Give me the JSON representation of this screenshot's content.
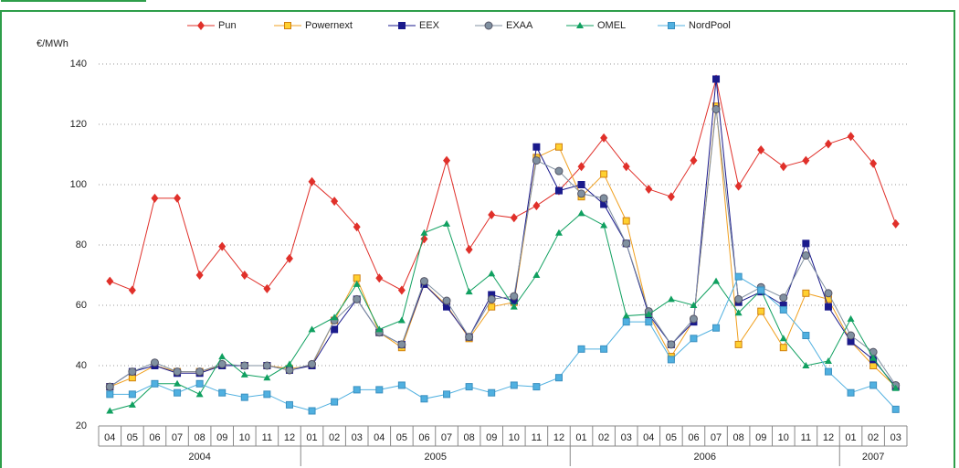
{
  "chart_data": {
    "type": "line",
    "y_label": "€/MWh",
    "categories": [
      "04",
      "05",
      "06",
      "07",
      "08",
      "09",
      "10",
      "11",
      "12",
      "01",
      "02",
      "03",
      "04",
      "05",
      "06",
      "07",
      "08",
      "09",
      "10",
      "11",
      "12",
      "01",
      "02",
      "03",
      "04",
      "05",
      "06",
      "07",
      "08",
      "09",
      "10",
      "11",
      "12",
      "01",
      "02",
      "03"
    ],
    "years": [
      "2004",
      "2005",
      "2006",
      "2007"
    ],
    "ylim": [
      20,
      140
    ],
    "yticks": [
      20,
      40,
      60,
      80,
      100,
      120,
      140
    ],
    "grid": true,
    "legend": "top",
    "series": [
      {
        "name": "Pun",
        "color": "#e0302a",
        "marker": "diamond",
        "values": [
          68,
          65,
          95.5,
          95.5,
          70,
          79.5,
          70,
          65.5,
          75.5,
          101,
          94.5,
          86,
          69,
          65,
          82,
          108,
          78.5,
          90,
          89,
          93,
          98,
          106,
          115.5,
          106,
          98.5,
          96,
          108,
          135,
          99.5,
          111.5,
          106,
          108,
          113.5,
          116,
          107,
          87
        ]
      },
      {
        "name": "Powernext",
        "color": "#f0a020",
        "marker": "square",
        "values": [
          33,
          36,
          40,
          38,
          38,
          40,
          40,
          40,
          39,
          40,
          55,
          69,
          51,
          46,
          67,
          60,
          49,
          59.5,
          61,
          109,
          112.5,
          96,
          103.5,
          88,
          57,
          43,
          55,
          126,
          47,
          58,
          46,
          64,
          62,
          48,
          40,
          33
        ]
      },
      {
        "name": "EEX",
        "color": "#1a1a8c",
        "marker": "square",
        "values": [
          33,
          38,
          40,
          37.5,
          37.5,
          40,
          40,
          40,
          38.5,
          40,
          52,
          62,
          51,
          47,
          67,
          59.5,
          49.5,
          63.5,
          61.5,
          112.5,
          98,
          100,
          93.5,
          80.5,
          57,
          47,
          54.5,
          135,
          61,
          64.5,
          60,
          80.5,
          59.5,
          48,
          42,
          33
        ]
      },
      {
        "name": "EXAA",
        "color": "#8090a0",
        "marker": "circle",
        "values": [
          33,
          38,
          41,
          38,
          38,
          40.5,
          40,
          40,
          38.5,
          40.5,
          55,
          62,
          51,
          47,
          68,
          61.5,
          49.5,
          62,
          63,
          108,
          104.5,
          97,
          95.5,
          80.5,
          58,
          47,
          55.5,
          125,
          62,
          66,
          62.5,
          76.5,
          64,
          50,
          44.5,
          33.5
        ]
      },
      {
        "name": "OMEL",
        "color": "#10a060",
        "marker": "triangle",
        "values": [
          25,
          27,
          34,
          34,
          30.5,
          43,
          37,
          36,
          40.5,
          52,
          56,
          67,
          52,
          55,
          84,
          87,
          64.5,
          70.5,
          59.5,
          70,
          84,
          90.5,
          86.5,
          56.5,
          57,
          62,
          60,
          68,
          57.5,
          65,
          49,
          40,
          41.5,
          55.5,
          42.5,
          32.5
        ]
      },
      {
        "name": "NordPool",
        "color": "#50b0e0",
        "marker": "square",
        "values": [
          30.5,
          30.5,
          34,
          31,
          34,
          31,
          29.5,
          30.5,
          27,
          25,
          28,
          32,
          32,
          33.5,
          29,
          30.5,
          33,
          31,
          33.5,
          33,
          36,
          45.5,
          45.5,
          54.5,
          54.5,
          42,
          49,
          52.5,
          69.5,
          65,
          58.5,
          50,
          38,
          31,
          33.5,
          25.5
        ]
      }
    ]
  }
}
